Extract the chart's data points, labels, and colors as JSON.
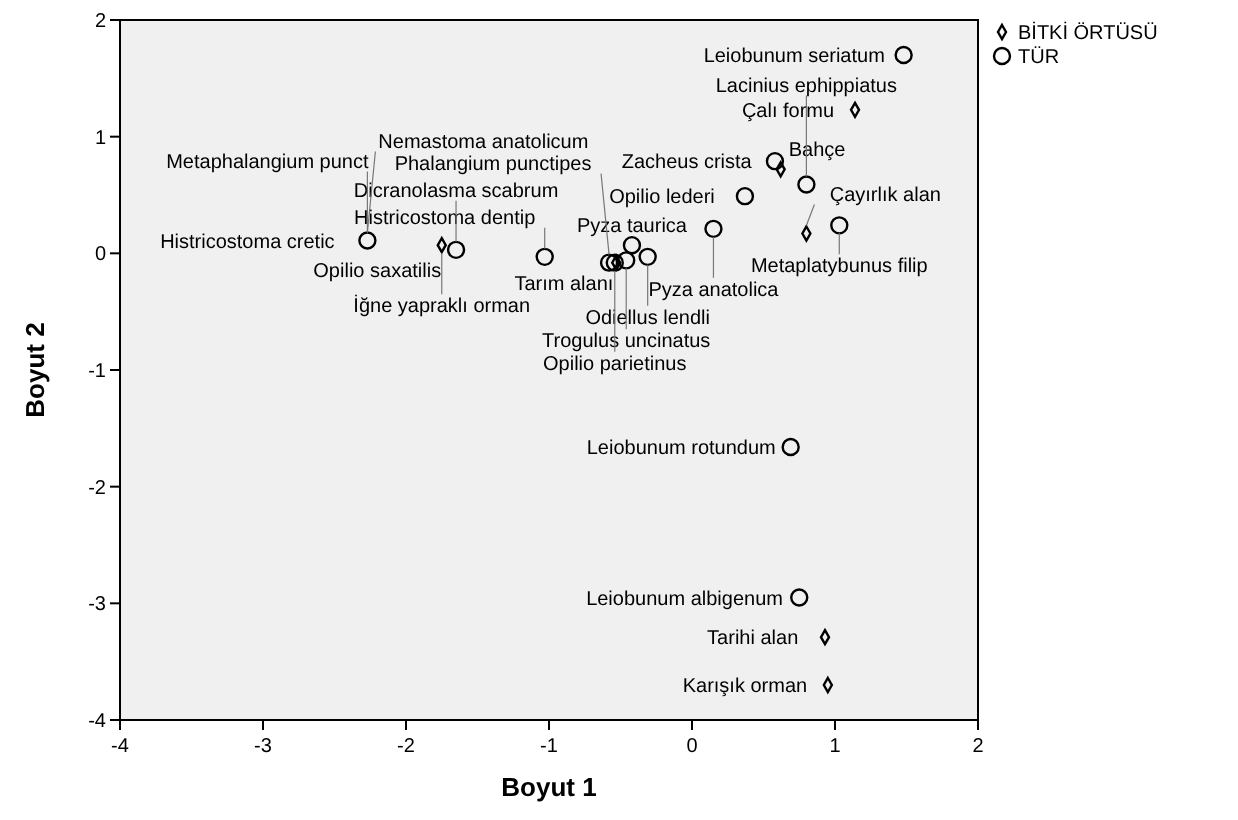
{
  "chart_data": {
    "type": "scatter",
    "xlabel": "Boyut 1",
    "ylabel": "Boyut 2",
    "xlim": [
      -4,
      2
    ],
    "ylim": [
      -4,
      2
    ],
    "xticks": [
      -4,
      -3,
      -2,
      -1,
      0,
      1,
      2
    ],
    "yticks": [
      -4,
      -3,
      -2,
      -1,
      0,
      1,
      2
    ],
    "grid": false,
    "legend": "top right",
    "series": [
      {
        "name": "BİTKİ ÖRTÜSÜ",
        "color": "#000000",
        "marker": "diamond",
        "x": [
          1.14,
          0.62,
          0.8,
          -1.75,
          -0.53,
          0.93,
          0.95
        ],
        "values": [
          1.23,
          0.72,
          0.17,
          0.07,
          -0.08,
          -3.29,
          -3.7
        ]
      },
      {
        "name": "TÜR",
        "color": "#000000",
        "marker": "circle",
        "x": [
          1.48,
          0.58,
          0.8,
          0.37,
          0.15,
          1.03,
          -0.42,
          -0.31,
          -0.46,
          -0.58,
          -0.54,
          -1.03,
          -1.65,
          -2.27,
          0.69,
          0.75
        ],
        "values": [
          1.7,
          0.79,
          0.59,
          0.49,
          0.21,
          0.24,
          0.07,
          -0.03,
          -0.06,
          -0.08,
          -0.08,
          -0.03,
          0.03,
          0.11,
          -1.66,
          -2.95
        ]
      }
    ],
    "annotations": [
      {
        "text": "Leiobunum seriatum",
        "x": 1.48,
        "y": 1.7
      },
      {
        "text": "Çalı formu",
        "x": 1.14,
        "y": 1.23
      },
      {
        "text": "Zacheus crista",
        "x": 0.58,
        "y": 0.79
      },
      {
        "text": "Bahçe",
        "x": 0.62,
        "y": 0.72
      },
      {
        "text": "Metaplatybunus filip",
        "x": 1.03,
        "y": 0.24
      },
      {
        "text": "Çayırlık alan",
        "x": 0.8,
        "y": 0.17
      },
      {
        "text": "Lacinius ephippiatus",
        "x": 0.8,
        "y": 0.59
      },
      {
        "text": "Opilio lederi",
        "x": 0.37,
        "y": 0.49
      },
      {
        "text": "Pyza anatolica",
        "x": 0.15,
        "y": 0.21
      },
      {
        "text": "Odiellus lendli",
        "x": -0.31,
        "y": -0.03
      },
      {
        "text": "Pyza taurica",
        "x": -0.42,
        "y": 0.07
      },
      {
        "text": "Tarım alanı",
        "x": -0.53,
        "y": -0.08
      },
      {
        "text": "Trogulus uncinatus",
        "x": -0.46,
        "y": -0.06
      },
      {
        "text": "Phalangium punctipes",
        "x": -0.58,
        "y": -0.08
      },
      {
        "text": "Opilio parietinus",
        "x": -0.54,
        "y": -0.08
      },
      {
        "text": "Histricostoma dentip",
        "x": -1.03,
        "y": -0.03
      },
      {
        "text": "Opilio saxatilis",
        "x": -1.65,
        "y": 0.03
      },
      {
        "text": "Dicranolasma scabrum",
        "x": -1.65,
        "y": 0.03
      },
      {
        "text": "İğne yapraklı orman",
        "x": -1.75,
        "y": 0.07
      },
      {
        "text": "Histricostoma cretic",
        "x": -2.27,
        "y": 0.11
      },
      {
        "text": "Metaphalangium punct",
        "x": -2.27,
        "y": 0.11
      },
      {
        "text": "Nemastoma anatolicum",
        "x": -2.27,
        "y": 0.11
      },
      {
        "text": "Leiobunum rotundum",
        "x": 0.69,
        "y": -1.66
      },
      {
        "text": "Leiobunum albigenum",
        "x": 0.75,
        "y": -2.95
      },
      {
        "text": "Tarihi alan",
        "x": 0.93,
        "y": -3.29
      },
      {
        "text": "Karışık orman",
        "x": 0.95,
        "y": -3.7
      }
    ]
  }
}
